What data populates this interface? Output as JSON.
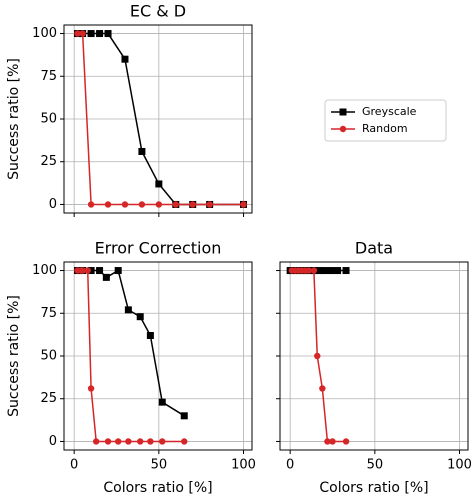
{
  "chart_data": [
    {
      "type": "line",
      "title": "EC & D",
      "ylabel": "Success ratio [%]",
      "xlim": [
        -6,
        105
      ],
      "ylim": [
        -5,
        105
      ],
      "xticks": [
        0,
        50,
        100
      ],
      "yticks": [
        0,
        25,
        50,
        75,
        100
      ],
      "grid": true,
      "show_xtick_labels": false,
      "show_ytick_labels": true,
      "legend": true,
      "series": [
        {
          "name": "Greyscale",
          "color": "#000000",
          "marker": "square",
          "x": [
            2,
            5,
            10,
            15,
            20,
            30,
            40,
            50,
            60,
            70,
            80,
            100
          ],
          "values": [
            100,
            100,
            100,
            100,
            100,
            85,
            31,
            12,
            0,
            0,
            0,
            0
          ]
        },
        {
          "name": "Random",
          "color": "#d62728",
          "marker": "circle",
          "x": [
            2,
            5,
            10,
            20,
            30,
            40,
            50,
            60,
            70,
            80,
            100
          ],
          "values": [
            100,
            100,
            0,
            0,
            0,
            0,
            0,
            0,
            0,
            0,
            0
          ]
        }
      ]
    },
    {
      "type": "line",
      "title": "Error Correction",
      "xlabel": "Colors ratio [%]",
      "ylabel": "Success ratio [%]",
      "xlim": [
        -6,
        105
      ],
      "ylim": [
        -5,
        105
      ],
      "xticks": [
        0,
        50,
        100
      ],
      "yticks": [
        0,
        25,
        50,
        75,
        100
      ],
      "grid": true,
      "show_xtick_labels": true,
      "show_ytick_labels": true,
      "legend": false,
      "series": [
        {
          "name": "Greyscale",
          "color": "#000000",
          "marker": "square",
          "x": [
            2,
            5,
            10,
            15,
            19,
            26,
            32,
            39,
            45,
            52,
            65
          ],
          "values": [
            100,
            100,
            100,
            100,
            96,
            100,
            77,
            73,
            62,
            23,
            15
          ]
        },
        {
          "name": "Random",
          "color": "#d62728",
          "marker": "circle",
          "x": [
            2,
            4,
            5,
            8,
            10,
            13,
            20,
            26,
            32,
            39,
            45,
            52,
            65
          ],
          "values": [
            100,
            100,
            100,
            100,
            31,
            0,
            0,
            0,
            0,
            0,
            0,
            0,
            0
          ]
        }
      ]
    },
    {
      "type": "line",
      "title": "Data",
      "xlabel": "Colors ratio [%]",
      "xlim": [
        -6,
        105
      ],
      "ylim": [
        -5,
        105
      ],
      "xticks": [
        0,
        50,
        100
      ],
      "yticks": [
        0,
        25,
        50,
        75,
        100
      ],
      "grid": true,
      "show_xtick_labels": true,
      "show_ytick_labels": false,
      "legend": false,
      "series": [
        {
          "name": "Greyscale",
          "color": "#000000",
          "marker": "square",
          "x": [
            0,
            2,
            4,
            6,
            8,
            10,
            12,
            14,
            17,
            20,
            24,
            28,
            33
          ],
          "values": [
            100,
            100,
            100,
            100,
            100,
            100,
            100,
            100,
            100,
            100,
            100,
            100,
            100
          ]
        },
        {
          "name": "Random",
          "color": "#d62728",
          "marker": "circle",
          "x": [
            1,
            3,
            5,
            7,
            9,
            11,
            14,
            16,
            19,
            22,
            25,
            33
          ],
          "values": [
            100,
            100,
            100,
            100,
            100,
            100,
            100,
            50,
            31,
            0,
            0,
            0
          ]
        }
      ]
    }
  ]
}
